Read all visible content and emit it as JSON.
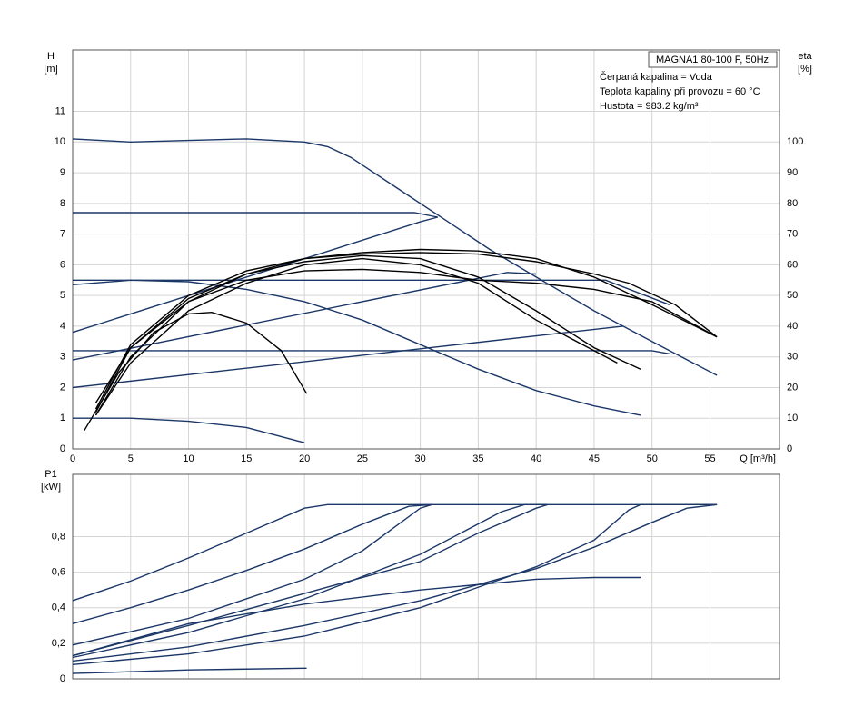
{
  "chart_data": [
    {
      "type": "line",
      "title": "MAGNA1 80-100 F, 50Hz",
      "notes": [
        "Čerpaná kapalina = Voda",
        "Teplota kapaliny při provozu = 60 °C",
        "Hustota = 983.2 kg/m³"
      ],
      "ylabel": "H",
      "yunit": "[m]",
      "y2label": "eta",
      "y2unit": "[%]",
      "xlabel": "Q [m³/h]",
      "xlim": [
        0,
        61
      ],
      "xticks": [
        0,
        5,
        10,
        15,
        20,
        25,
        30,
        35,
        40,
        45,
        50,
        55
      ],
      "ylim": [
        0,
        13
      ],
      "yticks": [
        0,
        1,
        2,
        3,
        4,
        5,
        6,
        7,
        8,
        9,
        10,
        11
      ],
      "y2lim": [
        0,
        130
      ],
      "y2ticks": [
        0,
        10,
        20,
        30,
        40,
        50,
        60,
        70,
        80,
        90,
        100
      ],
      "grid": true,
      "xtick_labels": true,
      "series": [
        {
          "color": "#1b3768",
          "x": [
            0,
            5,
            10,
            15,
            20,
            22,
            24,
            28,
            32,
            36,
            40,
            45,
            50,
            55.6
          ],
          "values": [
            10.1,
            10.0,
            10.05,
            10.1,
            10.0,
            9.85,
            9.5,
            8.5,
            7.5,
            6.5,
            5.6,
            4.5,
            3.5,
            2.4
          ]
        },
        {
          "color": "#1b3768",
          "x": [
            0,
            29.5,
            31.5
          ],
          "values": [
            7.7,
            7.7,
            7.55
          ]
        },
        {
          "color": "#1b3768",
          "x": [
            0,
            30,
            31.5
          ],
          "values": [
            3.8,
            7.4,
            7.55
          ]
        },
        {
          "color": "#1b3768",
          "x": [
            0,
            46,
            51.5
          ],
          "values": [
            5.5,
            5.5,
            4.7
          ]
        },
        {
          "color": "#1b3768",
          "x": [
            0,
            37.5,
            40
          ],
          "values": [
            2.9,
            5.75,
            5.7
          ]
        },
        {
          "color": "#1b3768",
          "x": [
            0,
            50,
            51.5
          ],
          "values": [
            3.2,
            3.2,
            3.1
          ]
        },
        {
          "color": "#1b3768",
          "x": [
            0,
            47.5
          ],
          "values": [
            2.0,
            4.0
          ]
        },
        {
          "color": "#1b3768",
          "x": [
            0,
            5,
            10,
            15,
            20,
            25,
            30,
            35,
            40,
            45,
            49
          ],
          "values": [
            5.35,
            5.5,
            5.45,
            5.2,
            4.8,
            4.2,
            3.4,
            2.6,
            1.9,
            1.4,
            1.1
          ]
        },
        {
          "color": "#1b3768",
          "x": [
            0,
            5,
            10,
            15,
            20
          ],
          "values": [
            1.0,
            1.0,
            0.9,
            0.7,
            0.2
          ]
        },
        {
          "color": "#000000",
          "axis": "y2",
          "x": [
            1,
            4,
            7,
            10,
            12,
            15,
            18,
            20.2
          ],
          "values": [
            6,
            25,
            38,
            44,
            44.5,
            41,
            32,
            18
          ]
        },
        {
          "color": "#000000",
          "axis": "y2",
          "x": [
            2,
            5,
            10,
            15,
            20,
            25,
            30,
            35,
            40,
            45,
            49
          ],
          "values": [
            11,
            30,
            48,
            57,
            61,
            63,
            62,
            56,
            45,
            33,
            26
          ]
        },
        {
          "color": "#000000",
          "axis": "y2",
          "x": [
            2,
            5,
            10,
            15,
            20,
            25,
            30,
            35,
            40,
            45,
            50,
            55.6
          ],
          "values": [
            12,
            33,
            49,
            57,
            62,
            64,
            65,
            64.5,
            62,
            56,
            47,
            36.5
          ]
        },
        {
          "color": "#000000",
          "axis": "y2",
          "x": [
            2,
            5,
            10,
            15,
            20,
            25,
            30,
            35,
            40,
            45,
            48,
            52,
            55.6
          ],
          "values": [
            13,
            34,
            50,
            58,
            62,
            63.5,
            64,
            63.5,
            61,
            57,
            54,
            47,
            36.5
          ]
        },
        {
          "color": "#000000",
          "axis": "y2",
          "x": [
            2,
            5,
            10,
            15,
            20,
            25,
            30,
            35,
            40,
            45,
            50,
            55.6
          ],
          "values": [
            15,
            33,
            48,
            55,
            58,
            58.5,
            57.5,
            55,
            54,
            52,
            48,
            36.5
          ]
        },
        {
          "color": "#000000",
          "axis": "y2",
          "x": [
            2,
            5,
            10,
            15,
            20,
            25,
            30,
            35,
            40,
            45,
            47
          ],
          "values": [
            11,
            28,
            45,
            54,
            60,
            62,
            60,
            54,
            42,
            32,
            28
          ]
        }
      ]
    },
    {
      "type": "line",
      "ylabel": "P1",
      "yunit": "[kW]",
      "xlim": [
        0,
        61
      ],
      "xticks": [
        0,
        5,
        10,
        15,
        20,
        25,
        30,
        35,
        40,
        45,
        50,
        55
      ],
      "ylim": [
        0,
        1.15
      ],
      "yticks": [
        0,
        {
          "value": 0.2,
          "label": "0,2"
        },
        {
          "value": 0.4,
          "label": "0,4"
        },
        {
          "value": 0.6,
          "label": "0,6"
        },
        {
          "value": 0.8,
          "label": "0,8"
        }
      ],
      "grid": true,
      "xtick_labels": false,
      "series": [
        {
          "color": "#1b3768",
          "x": [
            0,
            5,
            10,
            15,
            20,
            22,
            55.6
          ],
          "values": [
            0.44,
            0.55,
            0.68,
            0.82,
            0.96,
            0.98,
            0.98
          ]
        },
        {
          "color": "#1b3768",
          "x": [
            0,
            5,
            10,
            15,
            20,
            25,
            29,
            31
          ],
          "values": [
            0.31,
            0.4,
            0.5,
            0.61,
            0.73,
            0.87,
            0.97,
            0.98
          ]
        },
        {
          "color": "#1b3768",
          "x": [
            0,
            10,
            20,
            25,
            30,
            31
          ],
          "values": [
            0.19,
            0.34,
            0.56,
            0.72,
            0.96,
            0.98
          ]
        },
        {
          "color": "#1b3768",
          "x": [
            0,
            10,
            20,
            30,
            37,
            39,
            41
          ],
          "values": [
            0.12,
            0.26,
            0.45,
            0.7,
            0.94,
            0.98,
            0.98
          ]
        },
        {
          "color": "#1b3768",
          "x": [
            0,
            10,
            20,
            30,
            35,
            40,
            41
          ],
          "values": [
            0.13,
            0.3,
            0.48,
            0.66,
            0.82,
            0.96,
            0.98
          ]
        },
        {
          "color": "#1b3768",
          "x": [
            0,
            10,
            20,
            30,
            40,
            45,
            49
          ],
          "values": [
            0.13,
            0.31,
            0.42,
            0.5,
            0.56,
            0.57,
            0.57
          ]
        },
        {
          "color": "#1b3768",
          "x": [
            0,
            10,
            20,
            30,
            40,
            45,
            48,
            49,
            55.6
          ],
          "values": [
            0.08,
            0.14,
            0.24,
            0.4,
            0.63,
            0.78,
            0.95,
            0.98,
            0.98
          ]
        },
        {
          "color": "#1b3768",
          "x": [
            0,
            10,
            20,
            30,
            40,
            45,
            50,
            53,
            55.6
          ],
          "values": [
            0.1,
            0.18,
            0.3,
            0.44,
            0.62,
            0.74,
            0.88,
            0.96,
            0.98
          ]
        },
        {
          "color": "#1b3768",
          "x": [
            0,
            10,
            20,
            20.2
          ],
          "values": [
            0.03,
            0.05,
            0.06,
            0.06
          ]
        }
      ]
    }
  ]
}
